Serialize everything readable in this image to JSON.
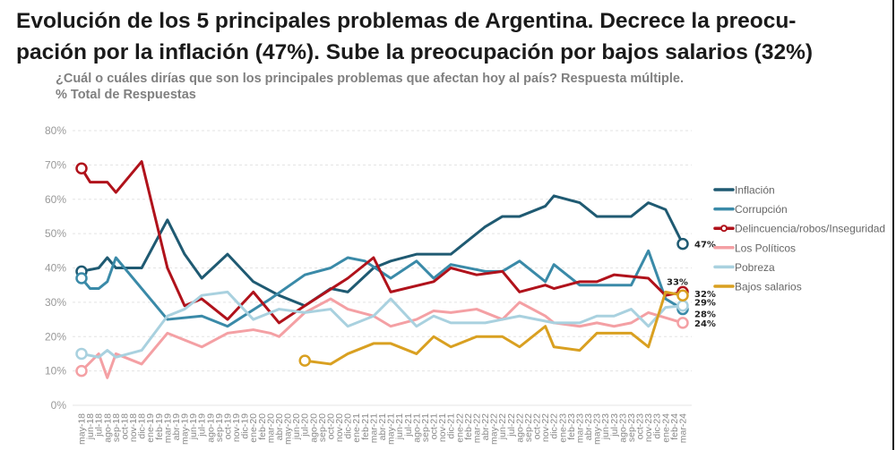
{
  "title_line1": "Evolución de los 5 principales problemas de Argentina. Decrece la preocu-",
  "title_line2": "pación por la inflación (47%). Sube la preocupación por bajos salarios (32%)",
  "subtitle_line1": "¿Cuál o cuáles dirías que son los principales problemas que afectan hoy al país? Respuesta múltiple.",
  "subtitle_line2": "% Total de Respuestas",
  "chart_data": {
    "type": "line",
    "title": "Evolución de los 5 principales problemas de Argentina",
    "xlabel": "",
    "ylabel": "",
    "ylim": [
      0,
      80
    ],
    "yticks": [
      "0%",
      "10%",
      "20%",
      "30%",
      "40%",
      "50%",
      "60%",
      "70%",
      "80%"
    ],
    "grid": "horizontal dashed",
    "legend": "right",
    "categories": [
      "may-18",
      "jun-18",
      "jul-18",
      "ago-18",
      "sep-18",
      "oct-18",
      "nov-18",
      "dic-18",
      "ene-19",
      "feb-19",
      "mar-19",
      "abr-19",
      "may-19",
      "jun-19",
      "jul-19",
      "ago-19",
      "sep-19",
      "oct-19",
      "nov-19",
      "dic-19",
      "ene-20",
      "feb-20",
      "mar-20",
      "abr-20",
      "may-20",
      "jun-20",
      "jul-20",
      "ago-20",
      "sep-20",
      "oct-20",
      "nov-20",
      "dic-20",
      "ene-21",
      "feb-21",
      "mar-21",
      "abr-21",
      "may-21",
      "jun-21",
      "jul-21",
      "ago-21",
      "sep-21",
      "oct-21",
      "nov-21",
      "dic-21",
      "ene-22",
      "feb-22",
      "mar-22",
      "abr-22",
      "may-22",
      "jun-22",
      "jul-22",
      "ago-22",
      "sep-22",
      "oct-22",
      "nov-22",
      "dic-22",
      "ene-23",
      "feb-23",
      "mar-23",
      "abr-23",
      "may-23",
      "jun-23",
      "jul-23",
      "ago-23",
      "sep-23",
      "oct-23",
      "nov-23",
      "dic-23",
      "ene-24",
      "feb-24",
      "mar-24"
    ],
    "series": [
      {
        "name": "Inflación",
        "color": "#1f5a72",
        "end_label": "47%",
        "points": [
          [
            "may-18",
            39
          ],
          [
            "jul-18",
            40
          ],
          [
            "ago-18",
            43
          ],
          [
            "sep-18",
            40
          ],
          [
            "dic-18",
            40
          ],
          [
            "mar-19",
            54
          ],
          [
            "may-19",
            44
          ],
          [
            "jul-19",
            37
          ],
          [
            "oct-19",
            44
          ],
          [
            "ene-20",
            36
          ],
          [
            "abr-20",
            32
          ],
          [
            "jul-20",
            29
          ],
          [
            "oct-20",
            34
          ],
          [
            "dic-20",
            33
          ],
          [
            "mar-21",
            40
          ],
          [
            "may-21",
            42
          ],
          [
            "ago-21",
            44
          ],
          [
            "dic-21",
            44
          ],
          [
            "abr-22",
            52
          ],
          [
            "jun-22",
            55
          ],
          [
            "ago-22",
            55
          ],
          [
            "nov-22",
            58
          ],
          [
            "dic-22",
            61
          ],
          [
            "mar-23",
            59
          ],
          [
            "may-23",
            55
          ],
          [
            "sep-23",
            55
          ],
          [
            "nov-23",
            59
          ],
          [
            "ene-24",
            57
          ],
          [
            "mar-24",
            47
          ]
        ]
      },
      {
        "name": "Corrupción",
        "color": "#3a8aa8",
        "end_label": "28%",
        "points": [
          [
            "may-18",
            37
          ],
          [
            "jun-18",
            34
          ],
          [
            "jul-18",
            34
          ],
          [
            "ago-18",
            36
          ],
          [
            "sep-18",
            43
          ],
          [
            "mar-19",
            25
          ],
          [
            "jul-19",
            26
          ],
          [
            "oct-19",
            23
          ],
          [
            "mar-20",
            31
          ],
          [
            "jul-20",
            38
          ],
          [
            "oct-20",
            40
          ],
          [
            "dic-20",
            43
          ],
          [
            "feb-21",
            42
          ],
          [
            "may-21",
            37
          ],
          [
            "ago-21",
            42
          ],
          [
            "oct-21",
            37
          ],
          [
            "dic-21",
            41
          ],
          [
            "abr-22",
            39
          ],
          [
            "jun-22",
            39
          ],
          [
            "ago-22",
            42
          ],
          [
            "nov-22",
            36
          ],
          [
            "dic-22",
            41
          ],
          [
            "mar-23",
            35
          ],
          [
            "sep-23",
            35
          ],
          [
            "nov-23",
            45
          ],
          [
            "ene-24",
            31
          ],
          [
            "mar-24",
            28
          ]
        ]
      },
      {
        "name": "Delincuencia/robos/Inseguridad",
        "color": "#b0121b",
        "end_label": "33%",
        "marker": "circle",
        "points": [
          [
            "may-18",
            69
          ],
          [
            "jun-18",
            65
          ],
          [
            "ago-18",
            65
          ],
          [
            "sep-18",
            62
          ],
          [
            "dic-18",
            71
          ],
          [
            "mar-19",
            40
          ],
          [
            "may-19",
            29
          ],
          [
            "jul-19",
            31
          ],
          [
            "oct-19",
            25
          ],
          [
            "ene-20",
            33
          ],
          [
            "mar-20",
            27
          ],
          [
            "abr-20",
            24
          ],
          [
            "jul-20",
            29
          ],
          [
            "dic-20",
            37
          ],
          [
            "mar-21",
            43
          ],
          [
            "may-21",
            33
          ],
          [
            "oct-21",
            36
          ],
          [
            "dic-21",
            40
          ],
          [
            "mar-22",
            38
          ],
          [
            "jun-22",
            39
          ],
          [
            "ago-22",
            33
          ],
          [
            "nov-22",
            35
          ],
          [
            "dic-22",
            34
          ],
          [
            "mar-23",
            36
          ],
          [
            "may-23",
            36
          ],
          [
            "jul-23",
            38
          ],
          [
            "nov-23",
            37
          ],
          [
            "ene-24",
            32
          ],
          [
            "mar-24",
            33
          ]
        ]
      },
      {
        "name": "Los Políticos",
        "color": "#f4a0a4",
        "end_label": "24%",
        "points": [
          [
            "may-18",
            10
          ],
          [
            "jul-18",
            15
          ],
          [
            "ago-18",
            8
          ],
          [
            "sep-18",
            15
          ],
          [
            "dic-18",
            12
          ],
          [
            "mar-19",
            21
          ],
          [
            "jul-19",
            17
          ],
          [
            "oct-19",
            21
          ],
          [
            "ene-20",
            22
          ],
          [
            "mar-20",
            21
          ],
          [
            "abr-20",
            20
          ],
          [
            "jul-20",
            27
          ],
          [
            "oct-20",
            31
          ],
          [
            "dic-20",
            28
          ],
          [
            "mar-21",
            26
          ],
          [
            "may-21",
            23
          ],
          [
            "ago-21",
            25
          ],
          [
            "oct-21",
            27.5
          ],
          [
            "dic-21",
            27
          ],
          [
            "mar-22",
            28
          ],
          [
            "jun-22",
            25
          ],
          [
            "ago-22",
            30
          ],
          [
            "nov-22",
            26
          ],
          [
            "dic-22",
            24
          ],
          [
            "mar-23",
            23
          ],
          [
            "may-23",
            24
          ],
          [
            "jul-23",
            23
          ],
          [
            "sep-23",
            24
          ],
          [
            "nov-23",
            27
          ],
          [
            "ene-24",
            25.5
          ],
          [
            "mar-24",
            24
          ]
        ]
      },
      {
        "name": "Pobreza",
        "color": "#a9d1df",
        "end_label": "29%",
        "points": [
          [
            "may-18",
            15
          ],
          [
            "jul-18",
            14
          ],
          [
            "ago-18",
            16
          ],
          [
            "sep-18",
            14
          ],
          [
            "dic-18",
            16
          ],
          [
            "mar-19",
            26
          ],
          [
            "may-19",
            28
          ],
          [
            "jul-19",
            32
          ],
          [
            "oct-19",
            33
          ],
          [
            "ene-20",
            25
          ],
          [
            "mar-20",
            27
          ],
          [
            "abr-20",
            28
          ],
          [
            "jul-20",
            27
          ],
          [
            "oct-20",
            28
          ],
          [
            "dic-20",
            23
          ],
          [
            "mar-21",
            26
          ],
          [
            "may-21",
            31
          ],
          [
            "ago-21",
            23
          ],
          [
            "oct-21",
            26
          ],
          [
            "dic-21",
            24
          ],
          [
            "abr-22",
            24
          ],
          [
            "jun-22",
            25
          ],
          [
            "ago-22",
            26
          ],
          [
            "dic-22",
            24
          ],
          [
            "mar-23",
            24
          ],
          [
            "may-23",
            26
          ],
          [
            "jul-23",
            26
          ],
          [
            "sep-23",
            28
          ],
          [
            "nov-23",
            23
          ],
          [
            "ene-24",
            28.5
          ],
          [
            "mar-24",
            29
          ]
        ]
      },
      {
        "name": "Bajos salarios",
        "color": "#d9a021",
        "end_label": "32%",
        "points": [
          [
            "jul-20",
            13
          ],
          [
            "oct-20",
            12
          ],
          [
            "dic-20",
            15
          ],
          [
            "mar-21",
            18
          ],
          [
            "may-21",
            18
          ],
          [
            "ago-21",
            15
          ],
          [
            "oct-21",
            20
          ],
          [
            "dic-21",
            17
          ],
          [
            "mar-22",
            20
          ],
          [
            "jun-22",
            20
          ],
          [
            "ago-22",
            17
          ],
          [
            "nov-22",
            23
          ],
          [
            "dic-22",
            17
          ],
          [
            "mar-23",
            16
          ],
          [
            "may-23",
            21
          ],
          [
            "sep-23",
            21
          ],
          [
            "nov-23",
            17
          ],
          [
            "ene-24",
            33
          ],
          [
            "mar-24",
            32
          ]
        ]
      }
    ]
  }
}
